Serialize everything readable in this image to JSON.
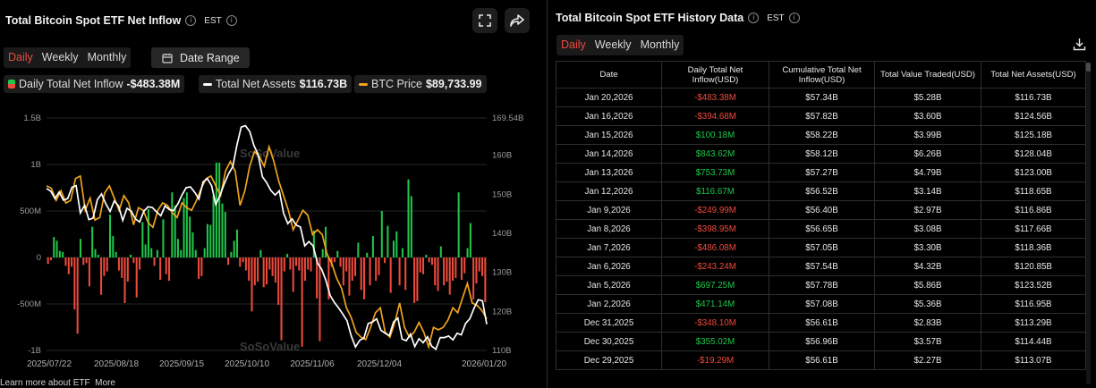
{
  "left": {
    "title": "Total Bitcoin Spot ETF Net Inflow",
    "timezone": "EST",
    "tabs": [
      "Daily",
      "Weekly",
      "Monthly"
    ],
    "active_tab": "Daily",
    "date_range_label": "Date Range",
    "legend": [
      {
        "label": "Daily Total Net Inflow",
        "value": "-$483.38M",
        "color": "#1fc64a"
      },
      {
        "label": "Total Net Assets",
        "value": "$116.73B",
        "color": "#ffffff"
      },
      {
        "label": "BTC Price",
        "value": "$89,733.99",
        "color": "#f0a31c"
      }
    ],
    "footer": "Learn more about ETF",
    "footer_more": "More",
    "watermark": "SoSoValue"
  },
  "colors": {
    "positive": "#1fc64a",
    "negative": "#ee4a3c",
    "btc": "#f0a31c",
    "assets": "#ffffff"
  },
  "chart_data": {
    "type": "bar",
    "x_ticks": [
      "2025/07/22",
      "2025/08/18",
      "2025/09/15",
      "2025/10/10",
      "2025/11/06",
      "2025/12/04",
      "2026/01/20"
    ],
    "y_left_ticks": [
      "1.5B",
      "1B",
      "500M",
      "0",
      "-500M",
      "-1B"
    ],
    "y_left_range": [
      -1000,
      1500
    ],
    "y_right_ticks": [
      "169.54B",
      "160B",
      "150B",
      "140B",
      "130B",
      "120B",
      "110B"
    ],
    "y_right_values": [
      169.54,
      160,
      150,
      140,
      130,
      120,
      110
    ],
    "y_right_range": [
      110,
      169.54
    ],
    "bars_musd": [
      -70,
      -30,
      220,
      180,
      70,
      60,
      -90,
      -180,
      -100,
      -560,
      -820,
      200,
      -80,
      -60,
      -310,
      330,
      90,
      30,
      -400,
      -200,
      -150,
      460,
      230,
      60,
      -140,
      -220,
      -490,
      -260,
      30,
      -60,
      -430,
      -130,
      380,
      140,
      520,
      100,
      -90,
      80,
      -240,
      410,
      -180,
      -250,
      700,
      560,
      200,
      80,
      640,
      700,
      440,
      270,
      80,
      -230,
      -200,
      100,
      360,
      350,
      670,
      1020,
      1020,
      580,
      490,
      -80,
      60,
      180,
      300,
      -100,
      -50,
      -140,
      -250,
      -580,
      -300,
      -260,
      80,
      -320,
      -290,
      -130,
      -200,
      -270,
      -510,
      -890,
      -150,
      40,
      -130,
      -370,
      -90,
      -140,
      -960,
      -250,
      -130,
      -150,
      290,
      -440,
      -900,
      90,
      330,
      -450,
      -100,
      -50,
      70,
      -100,
      -300,
      -150,
      -410,
      -250,
      -200,
      160,
      -350,
      -450,
      50,
      -300,
      230,
      -250,
      -190,
      500,
      -60,
      340,
      -380,
      180,
      280,
      -300,
      100,
      -350,
      840,
      660,
      -490,
      -470,
      -160,
      -180,
      30,
      -50,
      -80,
      -300,
      -360,
      120,
      -300,
      -260,
      -400,
      -250,
      -220,
      700,
      -240,
      -170,
      100,
      370,
      -450,
      -280,
      -150,
      -200,
      -480
    ],
    "assets_b": [
      151.5,
      150.8,
      148.9,
      150.6,
      148.5,
      148.9,
      151.8,
      152.2,
      145.2,
      147.2,
      143.5,
      143.9,
      148.6,
      150.1,
      147.6,
      145.6,
      148.3,
      147.1,
      143.3,
      146.4,
      145.7,
      143.7,
      142.9,
      145.7,
      146.8,
      146.6,
      145.5,
      144.5,
      147.0,
      146.1,
      145.8,
      147.5,
      149.8,
      151.7,
      151.9,
      150.5,
      148.8,
      153.2,
      154.0,
      152.2,
      147.4,
      149.8,
      152.7,
      155.2,
      157.1,
      162.7,
      167.2,
      167.6,
      166.1,
      162.5,
      160.2,
      154.5,
      153.0,
      151.0,
      149.8,
      150.9,
      145.2,
      142.5,
      143.7,
      142.1,
      141.6,
      136.8,
      137.9,
      136.8,
      132.4,
      130.8,
      128.0,
      124.1,
      122.3,
      120.9,
      119.3,
      117.6,
      113.7,
      110.9,
      112.6,
      113.2,
      116.9,
      117.3,
      118.1,
      115.2,
      114.4,
      113.8,
      117.3,
      118.3,
      112.9,
      112.5,
      114.2,
      111.0,
      113.0,
      112.0,
      113.5,
      111.1,
      110.3,
      113.3,
      113.3,
      113.7,
      112.7,
      114.4,
      114.0,
      116.9,
      118.1,
      120.8,
      123.0,
      122.7,
      116.7
    ],
    "btc_series_usd": [
      117000,
      116500,
      114000,
      116000,
      113500,
      114000,
      118500,
      119000,
      112000,
      114500,
      110000,
      110500,
      115500,
      117000,
      114500,
      112000,
      115000,
      113500,
      109000,
      112500,
      112000,
      109500,
      108500,
      112000,
      113500,
      113000,
      111500,
      110500,
      113500,
      112500,
      112000,
      114000,
      116500,
      118500,
      119000,
      117000,
      115000,
      120000,
      122000,
      120000,
      113000,
      116000,
      121000,
      124000,
      123000,
      121000,
      125000,
      122000,
      118000,
      115000,
      112000,
      108000,
      110000,
      112000,
      111000,
      107000,
      108000,
      107000,
      103000,
      101000,
      98000,
      96000,
      92000,
      90000,
      87000,
      86000,
      85500,
      88000,
      91000,
      92000,
      87000,
      86000,
      89000,
      93000,
      88000,
      86000,
      87000,
      89000,
      87000,
      84000,
      88000,
      87500,
      88000,
      89500,
      92000,
      91000,
      94000,
      97000,
      93000,
      92500,
      91500,
      89733.99
    ]
  },
  "right": {
    "title": "Total Bitcoin Spot ETF History Data",
    "timezone": "EST",
    "tabs": [
      "Daily",
      "Weekly",
      "Monthly"
    ],
    "active_tab": "Daily",
    "columns": [
      "Date",
      "Daily Total Net Inflow(USD)",
      "Cumulative Total Net Inflow(USD)",
      "Total Value Traded(USD)",
      "Total Net Assets(USD)"
    ],
    "rows": [
      {
        "date": "Jan 20,2026",
        "inflow": "-$483.38M",
        "cumulative": "$57.34B",
        "traded": "$5.28B",
        "assets": "$116.73B",
        "sign": "neg"
      },
      {
        "date": "Jan 16,2026",
        "inflow": "-$394.68M",
        "cumulative": "$57.82B",
        "traded": "$3.60B",
        "assets": "$124.56B",
        "sign": "neg"
      },
      {
        "date": "Jan 15,2026",
        "inflow": "$100.18M",
        "cumulative": "$58.22B",
        "traded": "$3.99B",
        "assets": "$125.18B",
        "sign": "pos"
      },
      {
        "date": "Jan 14,2026",
        "inflow": "$843.62M",
        "cumulative": "$58.12B",
        "traded": "$6.26B",
        "assets": "$128.04B",
        "sign": "pos"
      },
      {
        "date": "Jan 13,2026",
        "inflow": "$753.73M",
        "cumulative": "$57.27B",
        "traded": "$4.79B",
        "assets": "$123.00B",
        "sign": "pos"
      },
      {
        "date": "Jan 12,2026",
        "inflow": "$116.67M",
        "cumulative": "$56.52B",
        "traded": "$3.14B",
        "assets": "$118.65B",
        "sign": "pos"
      },
      {
        "date": "Jan 9,2026",
        "inflow": "-$249.99M",
        "cumulative": "$56.40B",
        "traded": "$2.97B",
        "assets": "$116.86B",
        "sign": "neg"
      },
      {
        "date": "Jan 8,2026",
        "inflow": "-$398.95M",
        "cumulative": "$56.65B",
        "traded": "$3.08B",
        "assets": "$117.66B",
        "sign": "neg"
      },
      {
        "date": "Jan 7,2026",
        "inflow": "-$486.08M",
        "cumulative": "$57.05B",
        "traded": "$3.30B",
        "assets": "$118.36B",
        "sign": "neg"
      },
      {
        "date": "Jan 6,2026",
        "inflow": "-$243.24M",
        "cumulative": "$57.54B",
        "traded": "$4.32B",
        "assets": "$120.85B",
        "sign": "neg"
      },
      {
        "date": "Jan 5,2026",
        "inflow": "$697.25M",
        "cumulative": "$57.78B",
        "traded": "$5.86B",
        "assets": "$123.52B",
        "sign": "pos"
      },
      {
        "date": "Jan 2,2026",
        "inflow": "$471.14M",
        "cumulative": "$57.08B",
        "traded": "$5.36B",
        "assets": "$116.95B",
        "sign": "pos"
      },
      {
        "date": "Dec 31,2025",
        "inflow": "-$348.10M",
        "cumulative": "$56.61B",
        "traded": "$2.83B",
        "assets": "$113.29B",
        "sign": "neg"
      },
      {
        "date": "Dec 30,2025",
        "inflow": "$355.02M",
        "cumulative": "$56.96B",
        "traded": "$3.57B",
        "assets": "$114.44B",
        "sign": "pos"
      },
      {
        "date": "Dec 29,2025",
        "inflow": "-$19.29M",
        "cumulative": "$56.61B",
        "traded": "$2.27B",
        "assets": "$113.07B",
        "sign": "neg"
      }
    ]
  }
}
